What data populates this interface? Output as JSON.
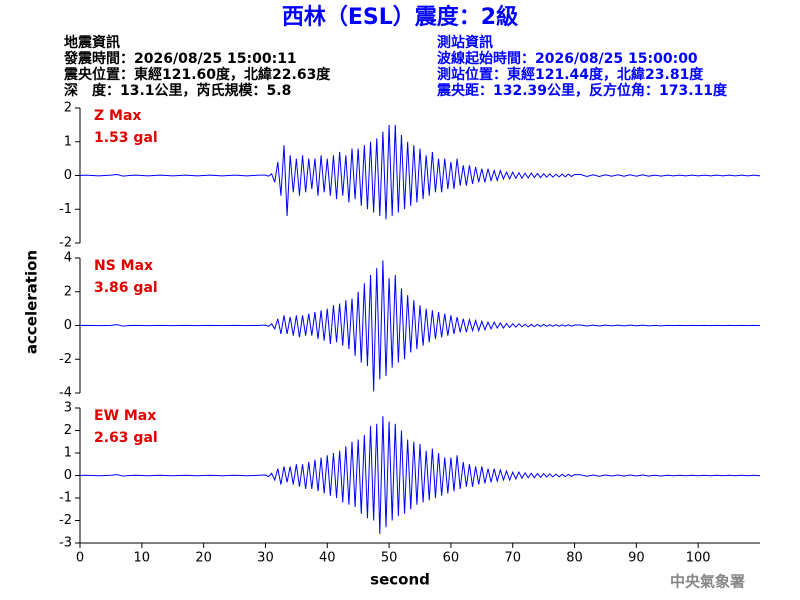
{
  "header": {
    "title": "西林（ESL）震度：2級",
    "event_info": [
      "地震資訊",
      "發震時間：2026/08/25 15:00:11",
      "震央位置：東經121.60度，北緯22.63度",
      "深　度：13.1公里，芮氏規模：5.8"
    ],
    "station_info": [
      "測站資訊",
      "波線起始時間：2026/08/25 15:00:00",
      "測站位置：東經121.44度，北緯23.81度",
      "震央距：132.39公里，反方位角：173.11度"
    ]
  },
  "chart_data": {
    "type": "line",
    "color": "#0000ff",
    "xlabel": "second",
    "ylabel": "acceleration",
    "xlim": [
      0,
      110
    ],
    "xticks": [
      0,
      10,
      20,
      30,
      40,
      50,
      60,
      70,
      80,
      90,
      100
    ],
    "x": [
      0,
      1,
      2,
      3,
      4,
      5,
      6,
      7,
      8,
      9,
      10,
      11,
      12,
      13,
      14,
      15,
      16,
      17,
      18,
      19,
      20,
      21,
      22,
      23,
      24,
      25,
      26,
      27,
      28,
      29,
      30,
      30.5,
      31,
      31.5,
      32,
      32.5,
      33,
      33.5,
      34,
      34.5,
      35,
      35.5,
      36,
      36.5,
      37,
      37.5,
      38,
      38.5,
      39,
      39.5,
      40,
      40.5,
      41,
      41.5,
      42,
      42.5,
      43,
      43.5,
      44,
      44.5,
      45,
      45.5,
      46,
      46.5,
      47,
      47.5,
      48,
      48.5,
      49,
      49.5,
      50,
      50.5,
      51,
      51.5,
      52,
      52.5,
      53,
      53.5,
      54,
      54.5,
      55,
      55.5,
      56,
      56.5,
      57,
      57.5,
      58,
      58.5,
      59,
      59.5,
      60,
      60.5,
      61,
      61.5,
      62,
      62.5,
      63,
      63.5,
      64,
      64.5,
      65,
      65.5,
      66,
      66.5,
      67,
      67.5,
      68,
      68.5,
      69,
      69.5,
      70,
      70.5,
      71,
      71.5,
      72,
      72.5,
      73,
      73.5,
      74,
      74.5,
      75,
      75.5,
      76,
      76.5,
      77,
      77.5,
      78,
      78.5,
      79,
      79.5,
      80,
      81,
      82,
      83,
      84,
      85,
      86,
      87,
      88,
      89,
      90,
      91,
      92,
      93,
      94,
      95,
      96,
      97,
      98,
      99,
      100,
      101,
      102,
      103,
      104,
      105,
      106,
      107,
      108,
      109,
      110
    ],
    "series": [
      {
        "name": "Z Max",
        "max_label": "1.53 gal",
        "ylim": [
          -2,
          2
        ],
        "yticks": [
          -2,
          -1,
          0,
          1,
          2
        ],
        "values": [
          0,
          0.01,
          0,
          -0.01,
          0,
          0.01,
          0.03,
          -0.02,
          0,
          0.01,
          0,
          -0.01,
          0,
          0.01,
          0,
          -0.01,
          0,
          0.01,
          0,
          -0.01,
          0,
          0.01,
          0,
          -0.01,
          0,
          0.01,
          0,
          -0.01,
          0,
          0.01,
          0.01,
          -0.02,
          0.05,
          -0.2,
          0.4,
          -0.6,
          0.9,
          -1.2,
          0.6,
          -0.5,
          0.5,
          -0.6,
          0.6,
          -0.5,
          0.5,
          -0.4,
          0.5,
          -0.6,
          0.6,
          -0.5,
          0.5,
          -0.6,
          0.6,
          -0.7,
          0.7,
          -0.6,
          0.6,
          -0.8,
          0.8,
          -0.7,
          0.8,
          -0.9,
          0.9,
          -1.0,
          1.0,
          -1.1,
          1.1,
          -1.2,
          1.3,
          -1.3,
          1.5,
          -1.2,
          1.5,
          -1.1,
          1.2,
          -1.0,
          1.0,
          -0.9,
          0.9,
          -0.8,
          0.8,
          -0.7,
          0.6,
          -0.6,
          0.7,
          -0.5,
          0.5,
          -0.5,
          0.5,
          -0.4,
          0.4,
          -0.4,
          0.5,
          -0.3,
          0.3,
          -0.3,
          0.3,
          -0.25,
          0.25,
          -0.2,
          0.2,
          -0.2,
          0.2,
          -0.15,
          0.15,
          -0.15,
          0.15,
          -0.1,
          0.1,
          -0.1,
          0.1,
          -0.08,
          0.08,
          -0.08,
          0.07,
          -0.07,
          0.07,
          -0.06,
          0.06,
          -0.06,
          0.05,
          -0.05,
          0.05,
          -0.05,
          0.04,
          -0.04,
          0.04,
          -0.04,
          0.04,
          -0.03,
          0.03,
          0.03,
          -0.03,
          0.02,
          -0.03,
          0.02,
          -0.02,
          0.02,
          -0.02,
          0.02,
          -0.02,
          0.02,
          -0.02,
          0.01,
          -0.02,
          0.01,
          -0.01,
          0.01,
          -0.01,
          0.01,
          -0.01,
          0.01,
          -0.01,
          0.01,
          -0.01,
          0.01,
          -0.01,
          0.01,
          -0.01,
          0.01,
          -0.01
        ]
      },
      {
        "name": "NS Max",
        "max_label": "3.86 gal",
        "ylim": [
          -4,
          4
        ],
        "yticks": [
          -4,
          -2,
          0,
          2,
          4
        ],
        "values": [
          0,
          0.01,
          0,
          -0.01,
          0,
          0.01,
          0.05,
          -0.04,
          0,
          0.01,
          0,
          -0.01,
          0,
          0.01,
          0,
          -0.01,
          0,
          0.01,
          0,
          -0.01,
          0,
          0.01,
          0,
          -0.01,
          0,
          0.01,
          0,
          -0.01,
          0,
          0.01,
          0.02,
          -0.05,
          0.1,
          -0.2,
          0.4,
          -0.5,
          0.6,
          -0.5,
          0.5,
          -0.6,
          0.6,
          -0.7,
          0.6,
          -0.6,
          0.7,
          -0.6,
          0.8,
          -0.8,
          0.9,
          -0.9,
          1.0,
          -1.1,
          1.2,
          -1.0,
          1.3,
          -1.2,
          1.5,
          -1.4,
          1.6,
          -1.8,
          2.0,
          -2.2,
          2.5,
          -2.4,
          3.0,
          -3.9,
          3.4,
          -3.2,
          3.86,
          -3.0,
          2.8,
          -2.5,
          3.0,
          -2.2,
          2.2,
          -2.0,
          1.8,
          -1.6,
          1.5,
          -1.4,
          1.2,
          -1.2,
          1.0,
          -1.0,
          0.9,
          -0.8,
          0.8,
          -0.7,
          0.7,
          -0.6,
          0.6,
          -0.5,
          0.5,
          -0.4,
          0.4,
          -0.4,
          0.35,
          -0.3,
          0.3,
          -0.3,
          0.25,
          -0.25,
          0.2,
          -0.2,
          0.2,
          -0.15,
          0.15,
          -0.15,
          0.12,
          -0.12,
          0.1,
          -0.1,
          0.1,
          -0.08,
          0.08,
          -0.08,
          0.07,
          -0.07,
          0.06,
          -0.06,
          0.06,
          -0.05,
          0.05,
          -0.05,
          0.05,
          -0.04,
          0.04,
          -0.04,
          0.04,
          -0.04,
          0.03,
          0.03,
          -0.03,
          0.02,
          -0.03,
          0.02,
          -0.02,
          0.02,
          -0.02,
          0.02,
          -0.02,
          0.02,
          -0.02,
          0.01,
          -0.02,
          0.01,
          -0.01,
          0.01,
          -0.01,
          0.01,
          -0.01,
          0.01,
          -0.01,
          0.01,
          -0.01,
          0.01,
          -0.01,
          0.01,
          -0.01,
          0.01,
          -0.01
        ]
      },
      {
        "name": "EW Max",
        "max_label": "2.63 gal",
        "ylim": [
          -3,
          3
        ],
        "yticks": [
          -3,
          -2,
          -1,
          0,
          1,
          2,
          3
        ],
        "values": [
          0,
          0.01,
          0,
          -0.01,
          0,
          0.01,
          0.04,
          -0.03,
          0,
          0.01,
          0,
          -0.01,
          0,
          0.01,
          0,
          -0.01,
          0,
          0.01,
          0,
          -0.01,
          0,
          0.01,
          0,
          -0.01,
          0,
          0.01,
          0,
          -0.01,
          0,
          0.01,
          0.02,
          -0.05,
          0.1,
          -0.2,
          0.3,
          -0.4,
          0.4,
          -0.3,
          0.4,
          -0.4,
          0.5,
          -0.5,
          0.5,
          -0.6,
          0.6,
          -0.6,
          0.7,
          -0.7,
          0.8,
          -0.8,
          0.9,
          -0.9,
          1.0,
          -1.0,
          1.1,
          -1.2,
          1.3,
          -1.3,
          1.5,
          -1.4,
          1.6,
          -1.7,
          1.8,
          -1.9,
          2.2,
          -2.0,
          2.3,
          -2.6,
          2.63,
          -2.3,
          2.4,
          -2.0,
          2.3,
          -1.8,
          2.0,
          -1.7,
          1.6,
          -1.5,
          1.5,
          -1.3,
          1.4,
          -1.2,
          1.1,
          -1.1,
          1.2,
          -1.0,
          1.0,
          -0.9,
          0.8,
          -0.8,
          0.8,
          -0.7,
          0.9,
          -0.6,
          0.6,
          -0.5,
          0.5,
          -0.5,
          0.4,
          -0.4,
          0.4,
          -0.35,
          0.3,
          -0.3,
          0.3,
          -0.25,
          0.25,
          -0.2,
          0.2,
          -0.2,
          0.15,
          -0.15,
          0.15,
          -0.12,
          0.12,
          -0.1,
          0.1,
          -0.1,
          0.09,
          -0.08,
          0.08,
          -0.07,
          0.07,
          -0.06,
          0.06,
          -0.06,
          0.05,
          -0.05,
          0.05,
          -0.04,
          0.04,
          0.03,
          -0.03,
          0.02,
          -0.03,
          0.02,
          -0.02,
          0.02,
          -0.02,
          0.02,
          -0.02,
          0.02,
          -0.02,
          0.01,
          -0.02,
          0.01,
          -0.01,
          0.01,
          -0.01,
          0.01,
          -0.01,
          0.01,
          -0.01,
          0.01,
          -0.01,
          0.01,
          -0.01,
          0.01,
          -0.01,
          0.01,
          -0.01
        ]
      }
    ]
  },
  "footer": "中央氣象署"
}
